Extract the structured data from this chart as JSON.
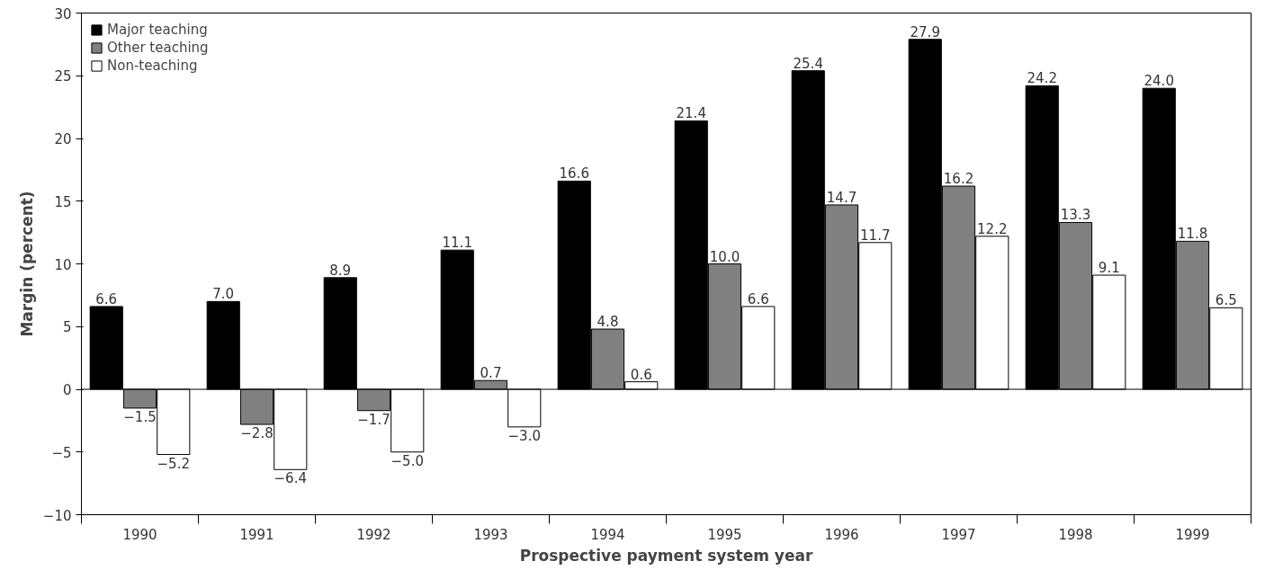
{
  "chart_data": {
    "type": "bar",
    "xlabel": "Prospective payment system year",
    "ylabel": "Margin (percent)",
    "categories": [
      "1990",
      "1991",
      "1992",
      "1993",
      "1994",
      "1995",
      "1996",
      "1997",
      "1998",
      "1999"
    ],
    "series": [
      {
        "name": "Major teaching",
        "color": "#000000",
        "values": [
          6.6,
          7.0,
          8.9,
          11.1,
          16.6,
          21.4,
          25.4,
          27.9,
          24.2,
          24.0
        ],
        "value_labels": [
          "6.6",
          "7.0",
          "8.9",
          "11.1",
          "16.6",
          "21.4",
          "25.4",
          "27.9",
          "24.2",
          "24.0"
        ]
      },
      {
        "name": "Other teaching",
        "color": "#808080",
        "values": [
          -1.5,
          -2.8,
          -1.7,
          0.7,
          4.8,
          10.0,
          14.7,
          16.2,
          13.3,
          11.8
        ],
        "value_labels": [
          "−1.5",
          "−2.8",
          "−1.7",
          "0.7",
          "4.8",
          "10.0",
          "14.7",
          "16.2",
          "13.3",
          "11.8"
        ]
      },
      {
        "name": "Non-teaching",
        "color": "#ffffff",
        "values": [
          -5.2,
          -6.4,
          -5.0,
          -3.0,
          0.6,
          6.6,
          11.7,
          12.2,
          9.1,
          6.5
        ],
        "value_labels": [
          "−5.2",
          "−6.4",
          "−5.0",
          "−3.0",
          "0.6",
          "6.6",
          "11.7",
          "12.2",
          "9.1",
          "6.5"
        ]
      }
    ],
    "ylim": [
      -10,
      30
    ],
    "yticks": [
      {
        "value": -10,
        "label": "−10"
      },
      {
        "value": -5,
        "label": "−5"
      },
      0,
      5,
      10,
      15,
      20,
      25,
      30
    ],
    "ref_lines": [
      {
        "axis": "y",
        "value": 0
      }
    ],
    "legend": "top left",
    "grid": false
  }
}
